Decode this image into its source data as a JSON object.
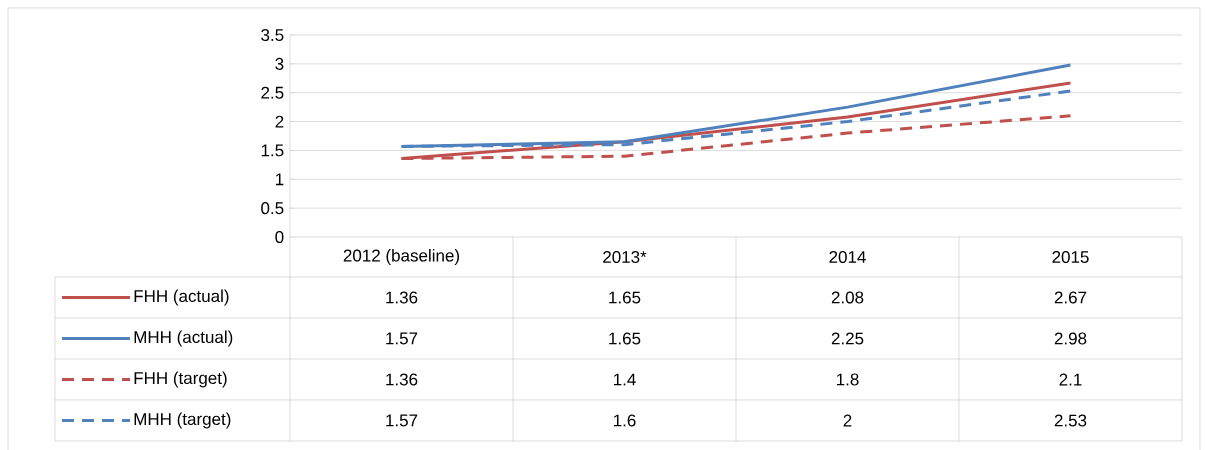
{
  "chart_data": {
    "type": "line",
    "categories": [
      "2012 (baseline)",
      "2013*",
      "2014",
      "2015"
    ],
    "series": [
      {
        "name": "FHH (actual)",
        "color": "#c0504d",
        "line_style": "solid",
        "values": [
          1.36,
          1.65,
          2.08,
          2.67
        ]
      },
      {
        "name": "MHH (actual)",
        "color": "#4f81bd",
        "line_style": "solid",
        "values": [
          1.57,
          1.65,
          2.25,
          2.98
        ]
      },
      {
        "name": "FHH (target)",
        "color": "#c0504d",
        "line_style": "dashed",
        "values": [
          1.36,
          1.4,
          1.8,
          2.1
        ]
      },
      {
        "name": "MHH (target)",
        "color": "#4f81bd",
        "line_style": "dashed",
        "values": [
          1.57,
          1.6,
          2,
          2.53
        ]
      }
    ],
    "ylim": [
      0,
      3.5
    ],
    "yticks": [
      0,
      0.5,
      1,
      1.5,
      2,
      2.5,
      3,
      3.5
    ],
    "grid": "y",
    "legend": "bottom",
    "marker": "none",
    "data_labels": true
  }
}
